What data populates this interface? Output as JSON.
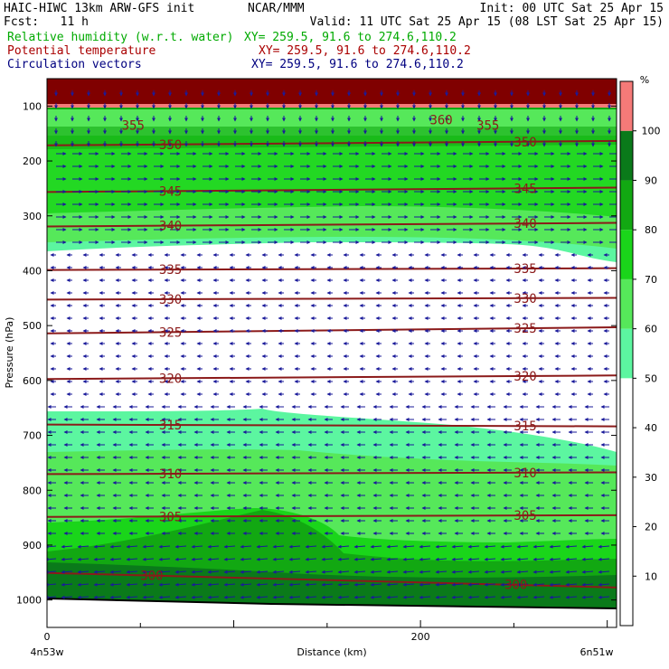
{
  "header": {
    "model": "HAIC-HIWC 13km ARW-GFS init",
    "center": "NCAR/MMM",
    "init": "Init: 00 UTC Sat 25 Apr 15",
    "fcst": "Fcst:   11 h",
    "valid": "Valid: 11 UTC Sat 25 Apr 15 (08 LST Sat 25 Apr 15)",
    "fields": [
      {
        "name": "Relative humidity (w.r.t. water)",
        "color": "#00aa00",
        "xy": "XY= 259.5, 91.6 to 274.6,110.2"
      },
      {
        "name": "Potential temperature",
        "color": "#aa0000",
        "xy": "XY= 259.5, 91.6 to 274.6,110.2"
      },
      {
        "name": "Circulation vectors",
        "color": "#000080",
        "xy": "XY= 259.5, 91.6 to 274.6,110.2"
      }
    ]
  },
  "chart_data": {
    "type": "heatmap",
    "xlabel": "Distance (km)",
    "ylabel": "Pressure (hPa)",
    "x_ticks": [
      0,
      200
    ],
    "x_range": [
      0,
      305
    ],
    "y_ticks": [
      100,
      200,
      300,
      400,
      500,
      600,
      700,
      800,
      900,
      1000
    ],
    "y_range": [
      1050,
      50
    ],
    "left_label": "4n53w",
    "right_label": "6n51w",
    "colorbar": {
      "unit": "%",
      "ticks": [
        10,
        20,
        30,
        40,
        50,
        60,
        70,
        80,
        90,
        100
      ],
      "levels": [
        {
          "from": 50,
          "to": 60,
          "color": "#5cf6a0"
        },
        {
          "from": 60,
          "to": 70,
          "color": "#56e85a"
        },
        {
          "from": 70,
          "to": 80,
          "color": "#1ad51a"
        },
        {
          "from": 80,
          "to": 90,
          "color": "#12a812"
        },
        {
          "from": 90,
          "to": 100,
          "color": "#0a7a1a"
        },
        {
          "from": 100,
          "to": 110,
          "color": "#f57a78"
        }
      ]
    },
    "theta_labels": [
      {
        "value": 355,
        "x": 40,
        "p": 135
      },
      {
        "value": 360,
        "x": 205,
        "p": 125
      },
      {
        "value": 355,
        "x": 230,
        "p": 135
      },
      {
        "value": 350,
        "x": 60,
        "p": 170
      },
      {
        "value": 350,
        "x": 250,
        "p": 165
      },
      {
        "value": 345,
        "x": 60,
        "p": 255
      },
      {
        "value": 345,
        "x": 250,
        "p": 250
      },
      {
        "value": 340,
        "x": 60,
        "p": 318
      },
      {
        "value": 340,
        "x": 250,
        "p": 314
      },
      {
        "value": 335,
        "x": 60,
        "p": 398
      },
      {
        "value": 335,
        "x": 250,
        "p": 396
      },
      {
        "value": 330,
        "x": 60,
        "p": 452
      },
      {
        "value": 330,
        "x": 250,
        "p": 450
      },
      {
        "value": 325,
        "x": 60,
        "p": 512
      },
      {
        "value": 325,
        "x": 250,
        "p": 505
      },
      {
        "value": 320,
        "x": 60,
        "p": 596
      },
      {
        "value": 320,
        "x": 250,
        "p": 592
      },
      {
        "value": 315,
        "x": 60,
        "p": 681
      },
      {
        "value": 315,
        "x": 250,
        "p": 683
      },
      {
        "value": 310,
        "x": 60,
        "p": 770
      },
      {
        "value": 310,
        "x": 250,
        "p": 768
      },
      {
        "value": 305,
        "x": 60,
        "p": 848
      },
      {
        "value": 305,
        "x": 250,
        "p": 846
      },
      {
        "value": 300,
        "x": 50,
        "p": 955
      },
      {
        "value": 300,
        "x": 245,
        "p": 972
      }
    ]
  }
}
